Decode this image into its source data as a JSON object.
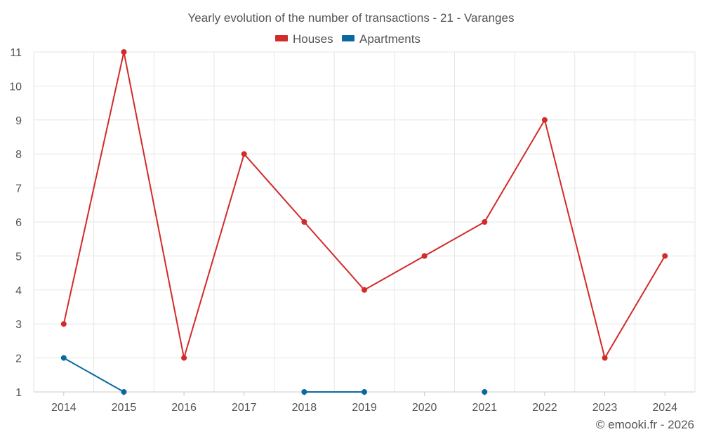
{
  "chart_data": {
    "type": "line",
    "title": "Yearly evolution of the number of transactions - 21 - Varanges",
    "categories": [
      "2014",
      "2015",
      "2016",
      "2017",
      "2018",
      "2019",
      "2020",
      "2021",
      "2022",
      "2023",
      "2024"
    ],
    "series": [
      {
        "name": "Houses",
        "color": "#d32a2a",
        "values": [
          3,
          11,
          2,
          8,
          6,
          4,
          5,
          6,
          9,
          2,
          5
        ]
      },
      {
        "name": "Apartments",
        "color": "#0a6a9e",
        "values": [
          2,
          1,
          null,
          null,
          1,
          1,
          null,
          1,
          null,
          null,
          null
        ]
      }
    ],
    "ylim": [
      1,
      11
    ],
    "yticks": [
      "1",
      "2",
      "3",
      "4",
      "5",
      "6",
      "7",
      "8",
      "9",
      "10",
      "11"
    ],
    "xlabel": "",
    "ylabel": "",
    "legend_position": "top-center",
    "grid": true
  },
  "footer": {
    "credit": "© emooki.fr - 2026"
  }
}
